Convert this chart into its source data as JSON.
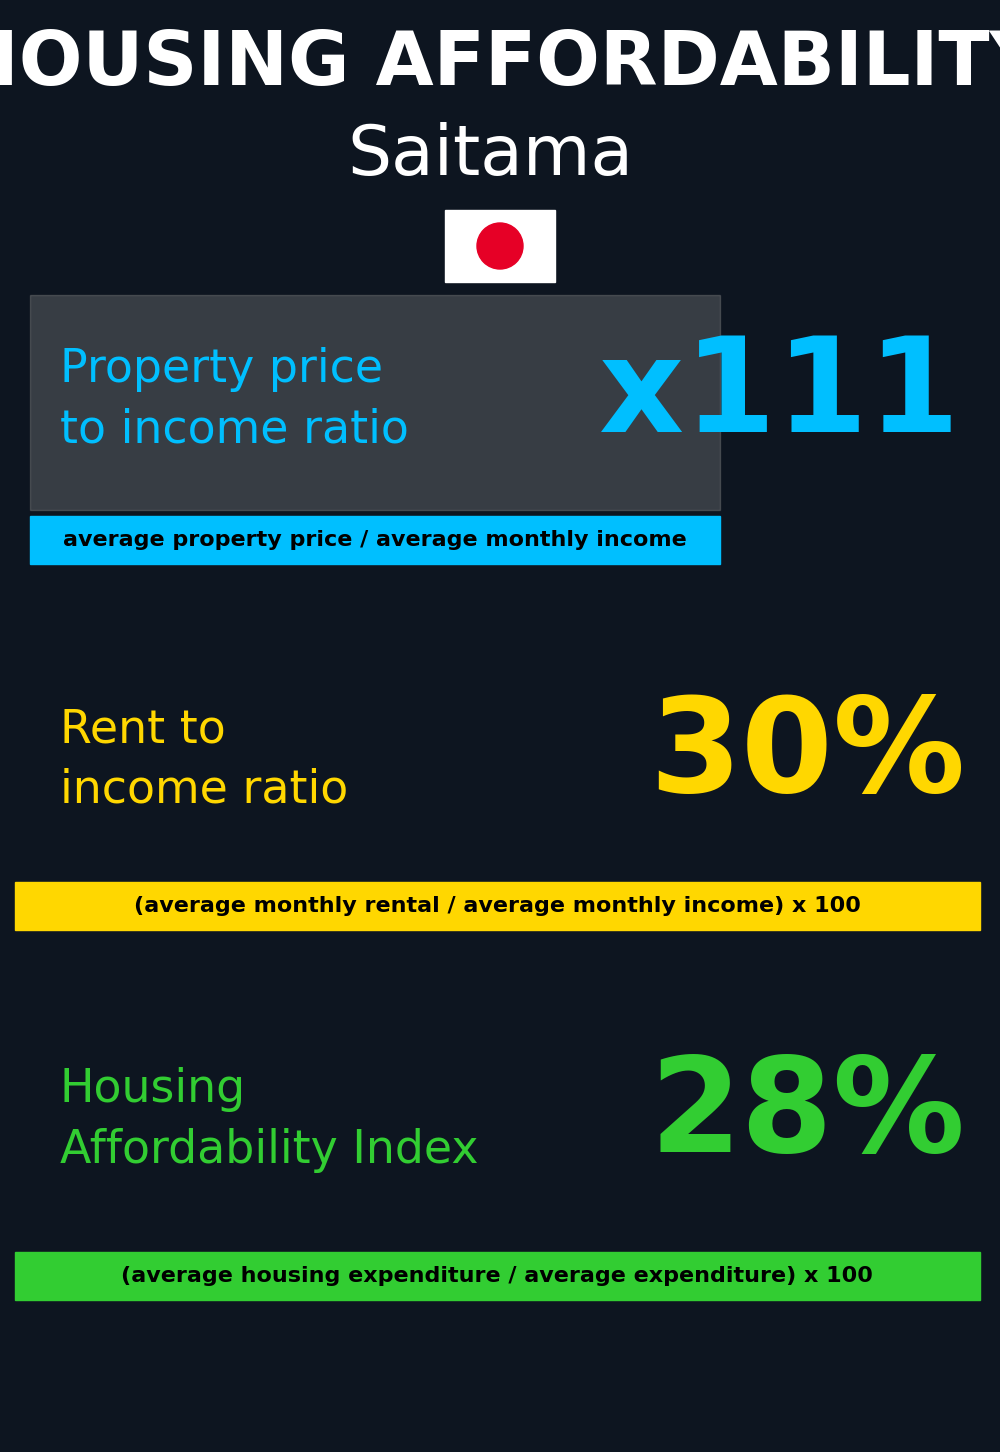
{
  "title_line1": "HOUSING AFFORDABILITY",
  "title_line2": "Saitama",
  "title_line1_color": "#ffffff",
  "title_line2_color": "#ffffff",
  "title_line1_fontsize": 54,
  "title_line2_fontsize": 50,
  "section1_label": "Property price\nto income ratio",
  "section1_value": "x111",
  "section1_label_color": "#00bfff",
  "section1_value_color": "#00bfff",
  "section1_label_fontsize": 33,
  "section1_value_fontsize": 95,
  "section1_sublabel": "average property price / average monthly income",
  "section1_sublabel_color": "#000000",
  "section1_bg_color": "#00bfff",
  "section2_label": "Rent to\nincome ratio",
  "section2_value": "30%",
  "section2_label_color": "#FFD700",
  "section2_value_color": "#FFD700",
  "section2_label_fontsize": 33,
  "section2_value_fontsize": 95,
  "section2_sublabel": "(average monthly rental / average monthly income) x 100",
  "section2_sublabel_color": "#000000",
  "section2_bg_color": "#FFD700",
  "section3_label": "Housing\nAffordability Index",
  "section3_value": "28%",
  "section3_label_color": "#32CD32",
  "section3_value_color": "#32CD32",
  "section3_label_fontsize": 33,
  "section3_value_fontsize": 95,
  "section3_sublabel": "(average housing expenditure / average expenditure) x 100",
  "section3_sublabel_color": "#000000",
  "section3_bg_color": "#32CD32",
  "bg_color": "#0d1520",
  "flag_bg": "#ffffff",
  "flag_circle_color": "#e60026"
}
